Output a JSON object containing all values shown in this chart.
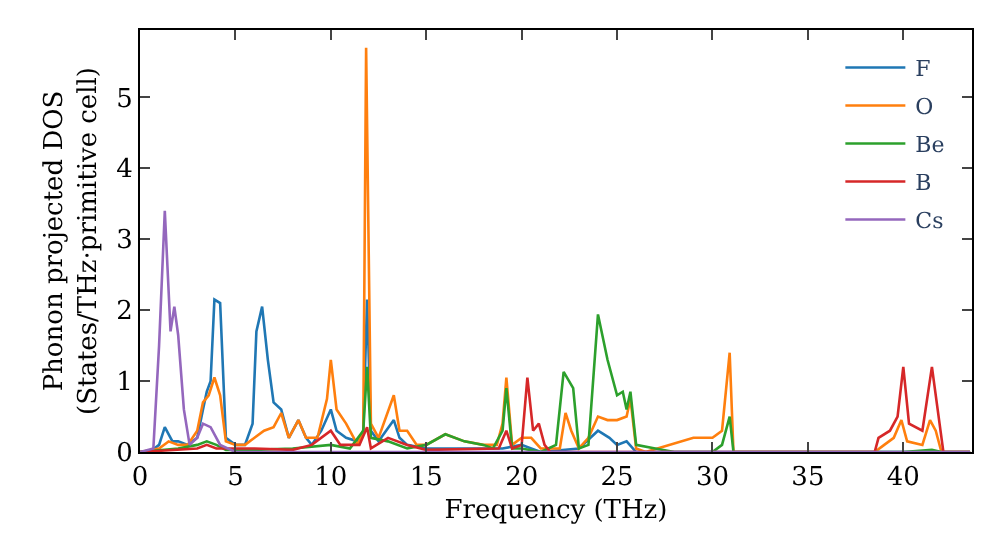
{
  "chart_data": {
    "type": "line",
    "xlabel": "Frequency (THz)",
    "ylabel": "Phonon projected DOS\n(States/THz·primitive cell)",
    "xlim": [
      0,
      43.6
    ],
    "ylim": [
      0,
      5.95
    ],
    "xticks": [
      0,
      5,
      10,
      15,
      20,
      25,
      30,
      35,
      40
    ],
    "yticks": [
      0,
      1,
      2,
      3,
      4,
      5
    ],
    "legend": "top right",
    "line_style": "solid",
    "marker": "none",
    "series": [
      {
        "name": "F",
        "color": "#1f77b4",
        "x": [
          0,
          0.5,
          1,
          1.3,
          1.7,
          2,
          2.5,
          3,
          3.3,
          3.5,
          3.7,
          3.9,
          4.2,
          4.5,
          5,
          5.5,
          5.9,
          6.1,
          6.4,
          6.7,
          7,
          7.4,
          7.8,
          8.3,
          8.7,
          9,
          9.5,
          10,
          10.3,
          10.8,
          11.4,
          11.7,
          11.9,
          12.1,
          12.5,
          13.3,
          13.6,
          14,
          15,
          17,
          19,
          20,
          20.5,
          21,
          23,
          24,
          24.6,
          25,
          25.5,
          26,
          43.5
        ],
        "values": [
          0,
          0,
          0.1,
          0.35,
          0.15,
          0.15,
          0.1,
          0.2,
          0.6,
          0.85,
          1.0,
          2.15,
          2.1,
          0.2,
          0.1,
          0.1,
          0.4,
          1.7,
          2.05,
          1.3,
          0.7,
          0.6,
          0.2,
          0.45,
          0.2,
          0.1,
          0.3,
          0.6,
          0.3,
          0.2,
          0.15,
          0.3,
          2.15,
          0.3,
          0.15,
          0.45,
          0.2,
          0.1,
          0.05,
          0.05,
          0.05,
          0.1,
          0.05,
          0,
          0.05,
          0.3,
          0.2,
          0.1,
          0.15,
          0,
          0
        ]
      },
      {
        "name": "O",
        "color": "#ff7f0e",
        "x": [
          0,
          1,
          1.5,
          2,
          2.5,
          3,
          3.3,
          3.6,
          3.9,
          4.2,
          4.5,
          5,
          5.5,
          6,
          6.5,
          7,
          7.4,
          7.8,
          8.3,
          8.7,
          9.3,
          9.8,
          10,
          10.3,
          10.8,
          11.4,
          11.7,
          11.85,
          12.1,
          12.5,
          13.3,
          13.6,
          14,
          14.5,
          15,
          16,
          17,
          18,
          18.7,
          19,
          19.2,
          19.5,
          20,
          20.5,
          21,
          22,
          22.3,
          22.6,
          23,
          23.5,
          24,
          24.5,
          25,
          25.5,
          25.7,
          26,
          26.5,
          29,
          30,
          30.5,
          30.9,
          31.1,
          38.5,
          39,
          39.5,
          39.9,
          40.2,
          41,
          41.4,
          41.7,
          42,
          43.5
        ],
        "values": [
          0,
          0.05,
          0.15,
          0.1,
          0.1,
          0.3,
          0.7,
          0.8,
          1.05,
          0.8,
          0.15,
          0.1,
          0.1,
          0.2,
          0.3,
          0.35,
          0.55,
          0.2,
          0.45,
          0.2,
          0.2,
          0.75,
          1.3,
          0.6,
          0.4,
          0.1,
          0.3,
          5.7,
          0.4,
          0.2,
          0.8,
          0.3,
          0.3,
          0.1,
          0.1,
          0.25,
          0.15,
          0.1,
          0.1,
          0.4,
          1.05,
          0.1,
          0.2,
          0.2,
          0.05,
          0.05,
          0.55,
          0.3,
          0.05,
          0.2,
          0.5,
          0.45,
          0.45,
          0.5,
          0.75,
          0.05,
          0,
          0.2,
          0.2,
          0.3,
          1.4,
          0,
          0,
          0.1,
          0.2,
          0.45,
          0.15,
          0.1,
          0.45,
          0.3,
          0,
          0
        ]
      },
      {
        "name": "Be",
        "color": "#2ca02c",
        "x": [
          0,
          2,
          3,
          3.5,
          4,
          4.5,
          6,
          8,
          10,
          11,
          11.7,
          11.9,
          12.1,
          13,
          14,
          15,
          16,
          17,
          18,
          18.5,
          19,
          19.2,
          19.5,
          20,
          21,
          21.8,
          22.2,
          22.7,
          23,
          23.5,
          24,
          24.5,
          25,
          25.3,
          25.5,
          25.7,
          26,
          27,
          28,
          30,
          30.5,
          30.9,
          31.1,
          40,
          41.5,
          42,
          43.5
        ],
        "values": [
          0,
          0.05,
          0.1,
          0.15,
          0.1,
          0.03,
          0.03,
          0.05,
          0.1,
          0.05,
          0.3,
          1.2,
          0.2,
          0.15,
          0.05,
          0.1,
          0.25,
          0.15,
          0.1,
          0.05,
          0.3,
          0.9,
          0.05,
          0.05,
          0,
          0.1,
          1.13,
          0.9,
          0.05,
          0.1,
          1.94,
          1.3,
          0.8,
          0.85,
          0.6,
          0.85,
          0.1,
          0.05,
          0,
          0,
          0.1,
          0.5,
          0,
          0,
          0.03,
          0,
          0
        ]
      },
      {
        "name": "B",
        "color": "#d62728",
        "x": [
          0,
          3,
          3.5,
          4,
          6,
          8,
          9,
          10,
          10.5,
          11.5,
          11.9,
          12.1,
          13,
          14,
          15,
          18.8,
          19.2,
          19.5,
          20,
          20.3,
          20.6,
          20.9,
          21.2,
          21.5,
          38.5,
          38.7,
          39.3,
          39.7,
          40,
          40.3,
          41,
          41.5,
          41.9,
          42.1,
          43.5
        ],
        "values": [
          0,
          0.05,
          0.1,
          0.05,
          0.05,
          0.03,
          0.1,
          0.3,
          0.1,
          0.1,
          0.35,
          0.05,
          0.2,
          0.1,
          0.03,
          0.05,
          0.3,
          0.05,
          0.1,
          1.05,
          0.3,
          0.4,
          0.1,
          0,
          0,
          0.2,
          0.3,
          0.5,
          1.2,
          0.4,
          0.3,
          1.2,
          0.4,
          0,
          0
        ]
      },
      {
        "name": "Cs",
        "color": "#9467bd",
        "x": [
          0,
          0.7,
          1,
          1.3,
          1.6,
          1.8,
          2,
          2.3,
          2.6,
          3,
          3.3,
          3.7,
          4.2,
          5,
          43.5
        ],
        "values": [
          0,
          0.05,
          1.5,
          3.4,
          1.7,
          2.05,
          1.65,
          0.6,
          0.1,
          0.2,
          0.4,
          0.35,
          0.1,
          0,
          0
        ]
      }
    ]
  }
}
